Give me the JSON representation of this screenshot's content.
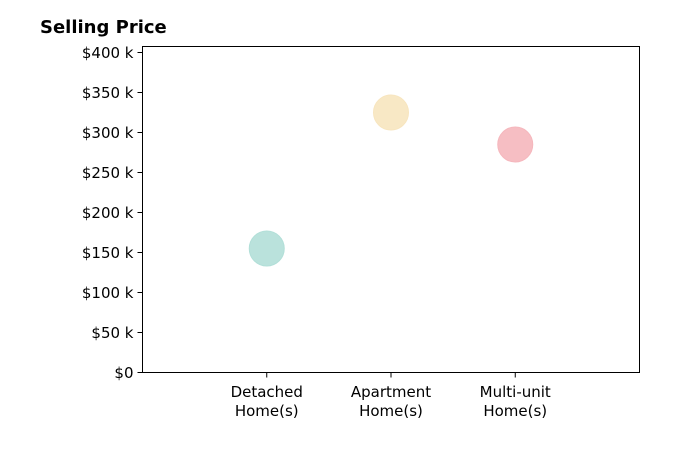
{
  "chart_data": {
    "type": "scatter",
    "title": "Selling Price",
    "categories": [
      "Detached\nHome(s)",
      "Apartment\nHome(s)",
      "Multi-unit\nHome(s)"
    ],
    "values": [
      155000,
      325000,
      285000
    ],
    "colors": [
      "#b2dfd8",
      "#f7e5bf",
      "#f5b7bd"
    ],
    "ylim": [
      0,
      400000
    ],
    "yticks": [
      0,
      50000,
      100000,
      150000,
      200000,
      250000,
      300000,
      350000,
      400000
    ],
    "ytick_labels": [
      "$0",
      "$50 k",
      "$100 k",
      "$150 k",
      "$200 k",
      "$250 k",
      "$300 k",
      "$350 k",
      "$400 k"
    ],
    "xlim": [
      0,
      4
    ],
    "grid": false
  }
}
